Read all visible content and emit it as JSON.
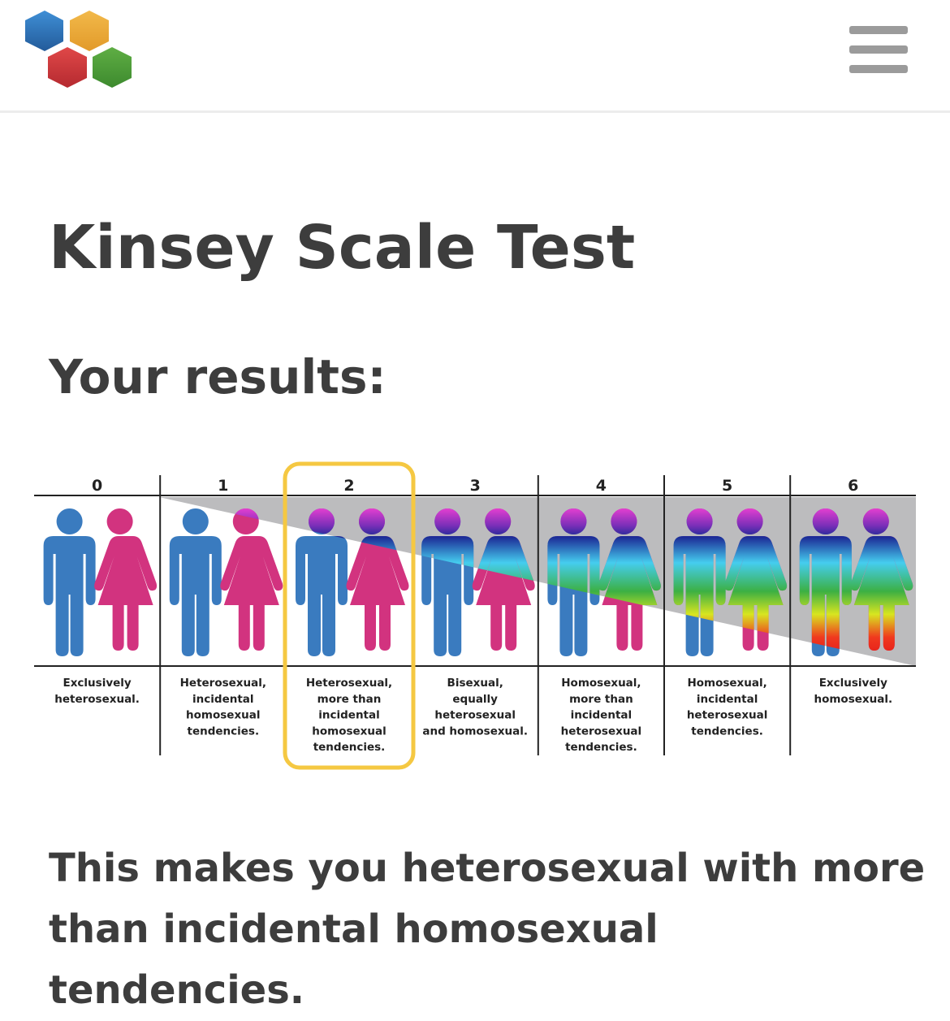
{
  "header": {
    "logo_name": "hexagon-logo",
    "menu_icon": "hamburger-menu-icon"
  },
  "page_title": "Kinsey Scale Test",
  "results_heading": "Your results:",
  "scale": {
    "selected_index": 2,
    "colors": {
      "male": "#3a7bbf",
      "female": "#d2337f",
      "background": "#bcbcbe",
      "highlight": "#f5c842"
    },
    "columns": [
      {
        "number": "0",
        "label": [
          "Exclusively",
          "heterosexual."
        ]
      },
      {
        "number": "1",
        "label": [
          "Heterosexual,",
          "incidental",
          "homosexual",
          "tendencies."
        ]
      },
      {
        "number": "2",
        "label": [
          "Heterosexual,",
          "more than",
          "incidental",
          "homosexual",
          "tendencies."
        ]
      },
      {
        "number": "3",
        "label": [
          "Bisexual,",
          "equally",
          "heterosexual",
          "and homosexual."
        ]
      },
      {
        "number": "4",
        "label": [
          "Homosexual,",
          "more than",
          "incidental",
          "heterosexual",
          "tendencies."
        ]
      },
      {
        "number": "5",
        "label": [
          "Homosexual,",
          "incidental",
          "heterosexual",
          "tendencies."
        ]
      },
      {
        "number": "6",
        "label": [
          "Exclusively",
          "homosexual."
        ]
      }
    ]
  },
  "result_text": "This makes you heterosexual with more than incidental homosexual tendencies."
}
